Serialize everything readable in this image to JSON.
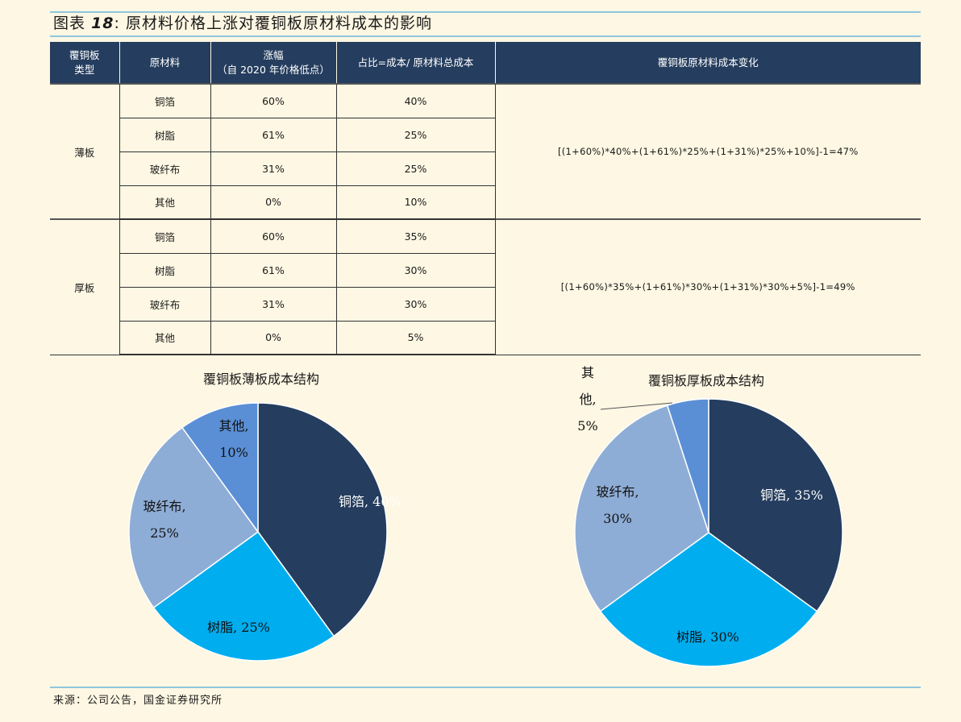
{
  "figure": {
    "label": "图表",
    "number": "18",
    "title": "原材料价格上涨对覆铜板原材料成本的影响"
  },
  "table": {
    "headers": [
      "覆铜板类型",
      "原材料",
      "涨幅（自 2020 年价格低点）",
      "占比=成本/ 原材料总成本",
      "覆铜板原材料成本变化"
    ],
    "header_lines": {
      "type": [
        "覆铜板",
        "类型"
      ],
      "material": [
        "原材料"
      ],
      "rise": [
        "涨幅",
        "（自 2020 年价格低点）"
      ],
      "share": [
        "占比=成本/ 原材料总成本"
      ],
      "change": [
        "覆铜板原材料成本变化"
      ]
    },
    "groups": [
      {
        "type": "薄板",
        "rows": [
          {
            "material": "铜箔",
            "rise": "60%",
            "share": "40%"
          },
          {
            "material": "树脂",
            "rise": "61%",
            "share": "25%"
          },
          {
            "material": "玻纤布",
            "rise": "31%",
            "share": "25%"
          },
          {
            "material": "其他",
            "rise": "0%",
            "share": "10%"
          }
        ],
        "formula": "[(1+60%)*40%+(1+61%)*25%+(1+31%)*25%+10%]-1=47%"
      },
      {
        "type": "厚板",
        "rows": [
          {
            "material": "铜箔",
            "rise": "60%",
            "share": "35%"
          },
          {
            "material": "树脂",
            "rise": "61%",
            "share": "30%"
          },
          {
            "material": "玻纤布",
            "rise": "31%",
            "share": "30%"
          },
          {
            "material": "其他",
            "rise": "0%",
            "share": "5%"
          }
        ],
        "formula": "[(1+60%)*35%+(1+61%)*30%+(1+31%)*30%+5%]-1=49%"
      }
    ]
  },
  "chart_data": [
    {
      "type": "pie",
      "title": "覆铜板薄板成本结构",
      "categories": [
        "铜箔",
        "树脂",
        "玻纤布",
        "其他"
      ],
      "values": [
        40,
        25,
        25,
        10
      ],
      "labels": [
        [
          "铜箔, 40%"
        ],
        [
          "树脂, 25%"
        ],
        [
          "玻纤布,",
          "25%"
        ],
        [
          "其他,",
          "10%"
        ]
      ],
      "colors": [
        "#253d5e",
        "#00aeef",
        "#8eadd6",
        "#5a8fd6"
      ]
    },
    {
      "type": "pie",
      "title": "覆铜板厚板成本结构",
      "categories": [
        "铜箔",
        "树脂",
        "玻纤布",
        "其他"
      ],
      "values": [
        35,
        30,
        30,
        5
      ],
      "labels": [
        [
          "铜箔, 35%"
        ],
        [
          "树脂, 30%"
        ],
        [
          "玻纤布,",
          "30%"
        ],
        [
          "其",
          "他,",
          "5%"
        ]
      ],
      "colors": [
        "#253d5e",
        "#00aeef",
        "#8eadd6",
        "#5a8fd6"
      ]
    }
  ],
  "source": "来源：公司公告，国金证券研究所"
}
